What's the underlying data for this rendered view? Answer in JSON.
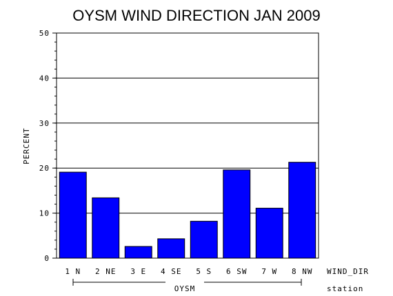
{
  "chart_data": {
    "type": "bar",
    "title": "OYSM WIND DIRECTION JAN 2009",
    "ylabel": "PERCENT",
    "xlabel": "WIND_DIR",
    "group_label": "OYSM",
    "group_axis_label": "station",
    "categories": [
      "1 N",
      "2 NE",
      "3 E",
      "4 SE",
      "5 S",
      "6 SW",
      "7 W",
      "8 NW"
    ],
    "values": [
      19.1,
      13.4,
      2.6,
      4.3,
      8.2,
      19.6,
      11.1,
      21.3
    ],
    "ylim": [
      0,
      50
    ],
    "yticks": [
      "0",
      "10",
      "20",
      "30",
      "40",
      "50"
    ],
    "bar_color": "#0000ff",
    "grid": true
  }
}
